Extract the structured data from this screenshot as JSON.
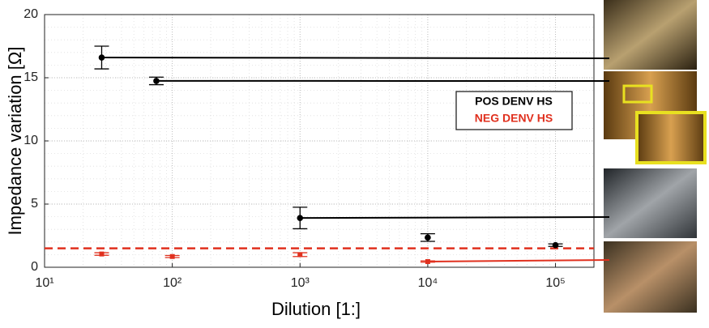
{
  "chart_data": {
    "type": "scatter",
    "xlabel": "Dilution [1:]",
    "ylabel": "Impedance variation [Ω]",
    "xscale": "log",
    "xlim": [
      10,
      200000
    ],
    "xticks": [
      {
        "value": 10,
        "label": "10¹"
      },
      {
        "value": 100,
        "label": "10²"
      },
      {
        "value": 1000,
        "label": "10³"
      },
      {
        "value": 10000,
        "label": "10⁴"
      },
      {
        "value": 100000,
        "label": "10⁵"
      }
    ],
    "ylim": [
      0,
      20
    ],
    "yticks": [
      0,
      5,
      10,
      15,
      20
    ],
    "grid": true,
    "series": [
      {
        "name": "POS DENV HS",
        "color": "#000000",
        "marker": "circle",
        "x": [
          28,
          75,
          1000,
          10000,
          100000
        ],
        "values": [
          16.6,
          14.75,
          3.9,
          2.35,
          1.75
        ],
        "errors": [
          0.9,
          0.3,
          0.85,
          0.3,
          0.1
        ]
      },
      {
        "name": "NEG DENV HS",
        "color": "#e0301e",
        "marker": "square",
        "x": [
          28,
          100,
          1000,
          10000
        ],
        "values": [
          1.05,
          0.85,
          1.0,
          0.45
        ],
        "errors": [
          0.1,
          0.08,
          0.15,
          0.05
        ]
      }
    ],
    "threshold": {
      "value": 1.5,
      "color": "#e0301e"
    }
  }
}
